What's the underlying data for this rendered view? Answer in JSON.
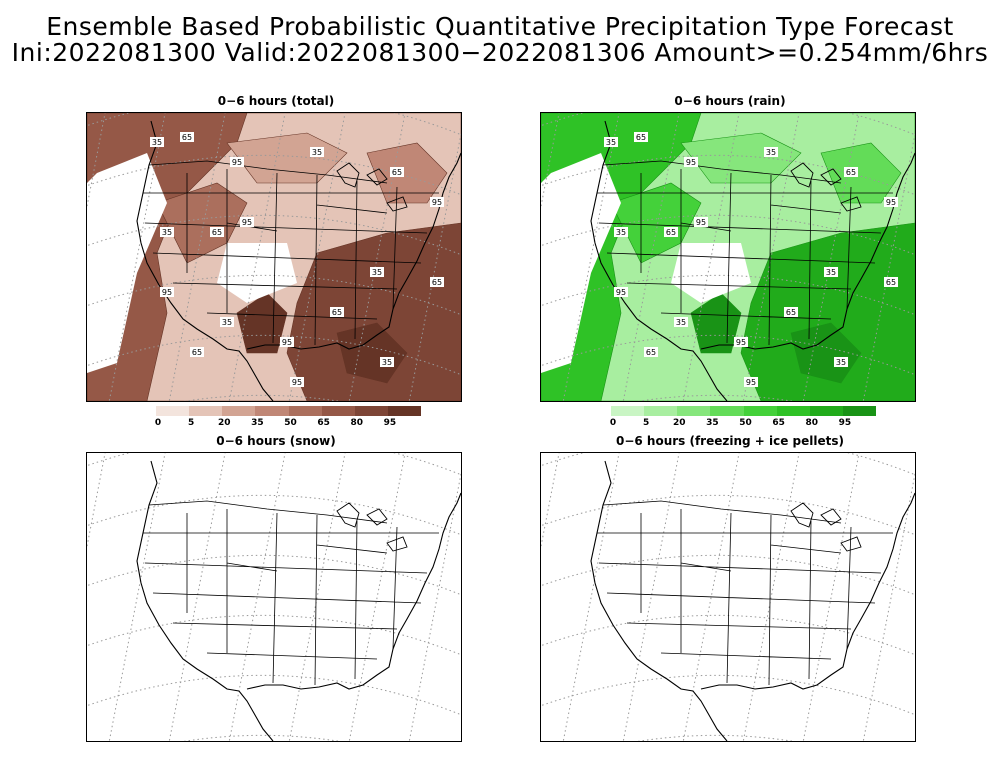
{
  "header": {
    "title_line1": "Ensemble Based Probabilistic Quantitative Precipitation Type Forecast",
    "title_line2": "Ini:2022081300 Valid:2022081300−2022081306 Amount>=0.254mm/6hrs"
  },
  "panels": [
    {
      "title": "0−6 hours (total)",
      "theme": "brown"
    },
    {
      "title": "0−6 hours (rain)",
      "theme": "green"
    },
    {
      "title": "0−6 hours (snow)",
      "theme": "none"
    },
    {
      "title": "0−6 hours (freezing + ice pellets)",
      "theme": "none"
    }
  ],
  "colorbars": {
    "brown": {
      "labels": [
        "0",
        "5",
        "20",
        "35",
        "50",
        "65",
        "80",
        "95"
      ],
      "colors": [
        "#f3e4dd",
        "#e4c4b7",
        "#d2a493",
        "#c08776",
        "#ab6f5d",
        "#955847",
        "#7d4536",
        "#653426"
      ]
    },
    "green": {
      "labels": [
        "0",
        "5",
        "20",
        "35",
        "50",
        "65",
        "80",
        "95"
      ],
      "colors": [
        "#c9f5c4",
        "#a8eea0",
        "#86e67c",
        "#63dc58",
        "#44d13a",
        "#2fc226",
        "#21ab1b",
        "#199316"
      ]
    }
  },
  "contour_labels": [
    "35",
    "65",
    "95"
  ],
  "colors": {
    "brown_dark": "#653426",
    "green_dark": "#199316",
    "coast": "#000000",
    "grid": "#999999"
  }
}
